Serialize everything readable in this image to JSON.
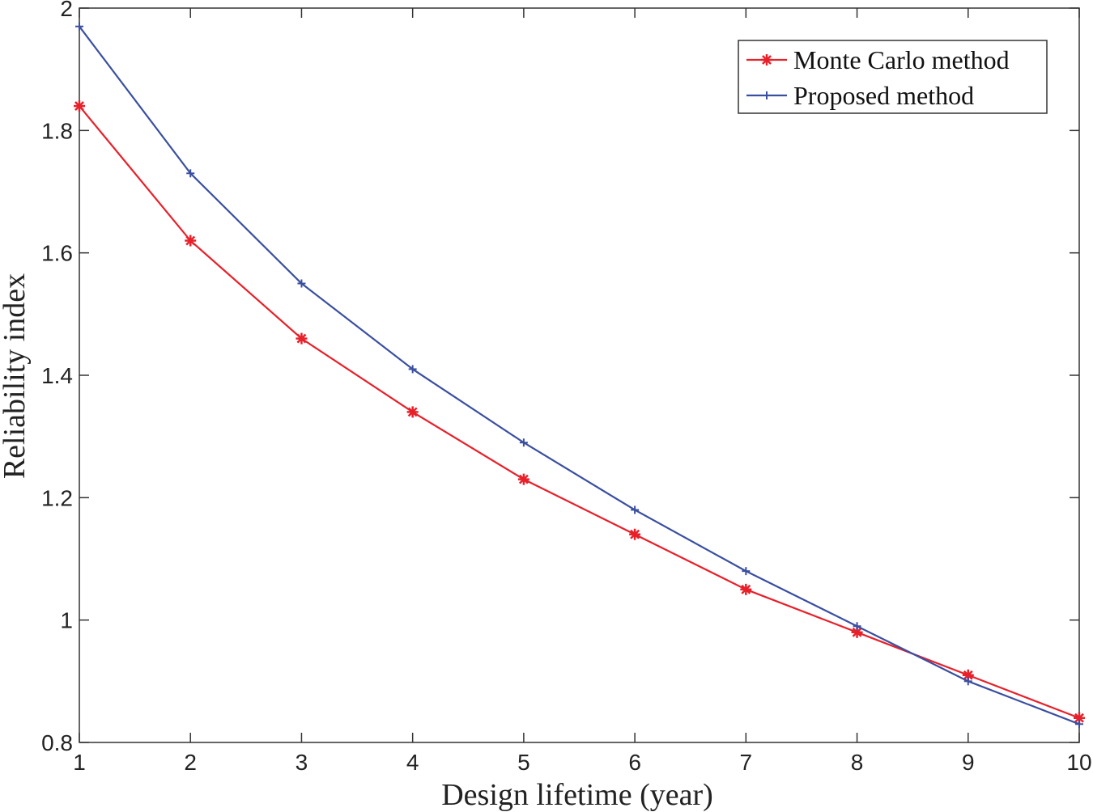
{
  "chart_data": {
    "type": "line",
    "title": "",
    "xlabel": "Design lifetime (year)",
    "ylabel": "Reliability index",
    "xlim": [
      1,
      10
    ],
    "ylim": [
      0.8,
      2.0
    ],
    "x": [
      1,
      2,
      3,
      4,
      5,
      6,
      7,
      8,
      9,
      10
    ],
    "xticks": [
      "1",
      "2",
      "3",
      "4",
      "5",
      "6",
      "7",
      "8",
      "9",
      "10"
    ],
    "yticks": [
      {
        "value": 0.8,
        "label": "0.8"
      },
      {
        "value": 1.0,
        "label": "1"
      },
      {
        "value": 1.2,
        "label": "1.2"
      },
      {
        "value": 1.4,
        "label": "1.4"
      },
      {
        "value": 1.6,
        "label": "1.6"
      },
      {
        "value": 1.8,
        "label": "1.8"
      },
      {
        "value": 2.0,
        "label": "2"
      }
    ],
    "grid": false,
    "legend_position": "top-right",
    "series": [
      {
        "name": "Monte Carlo method",
        "color": "#e8202a",
        "marker": "asterisk",
        "values": [
          1.84,
          1.62,
          1.46,
          1.34,
          1.23,
          1.14,
          1.05,
          0.98,
          0.91,
          0.84
        ]
      },
      {
        "name": "Proposed method",
        "color": "#3a4fa0",
        "marker": "plus",
        "values": [
          1.97,
          1.73,
          1.55,
          1.41,
          1.29,
          1.18,
          1.08,
          0.99,
          0.9,
          0.83
        ]
      }
    ]
  }
}
